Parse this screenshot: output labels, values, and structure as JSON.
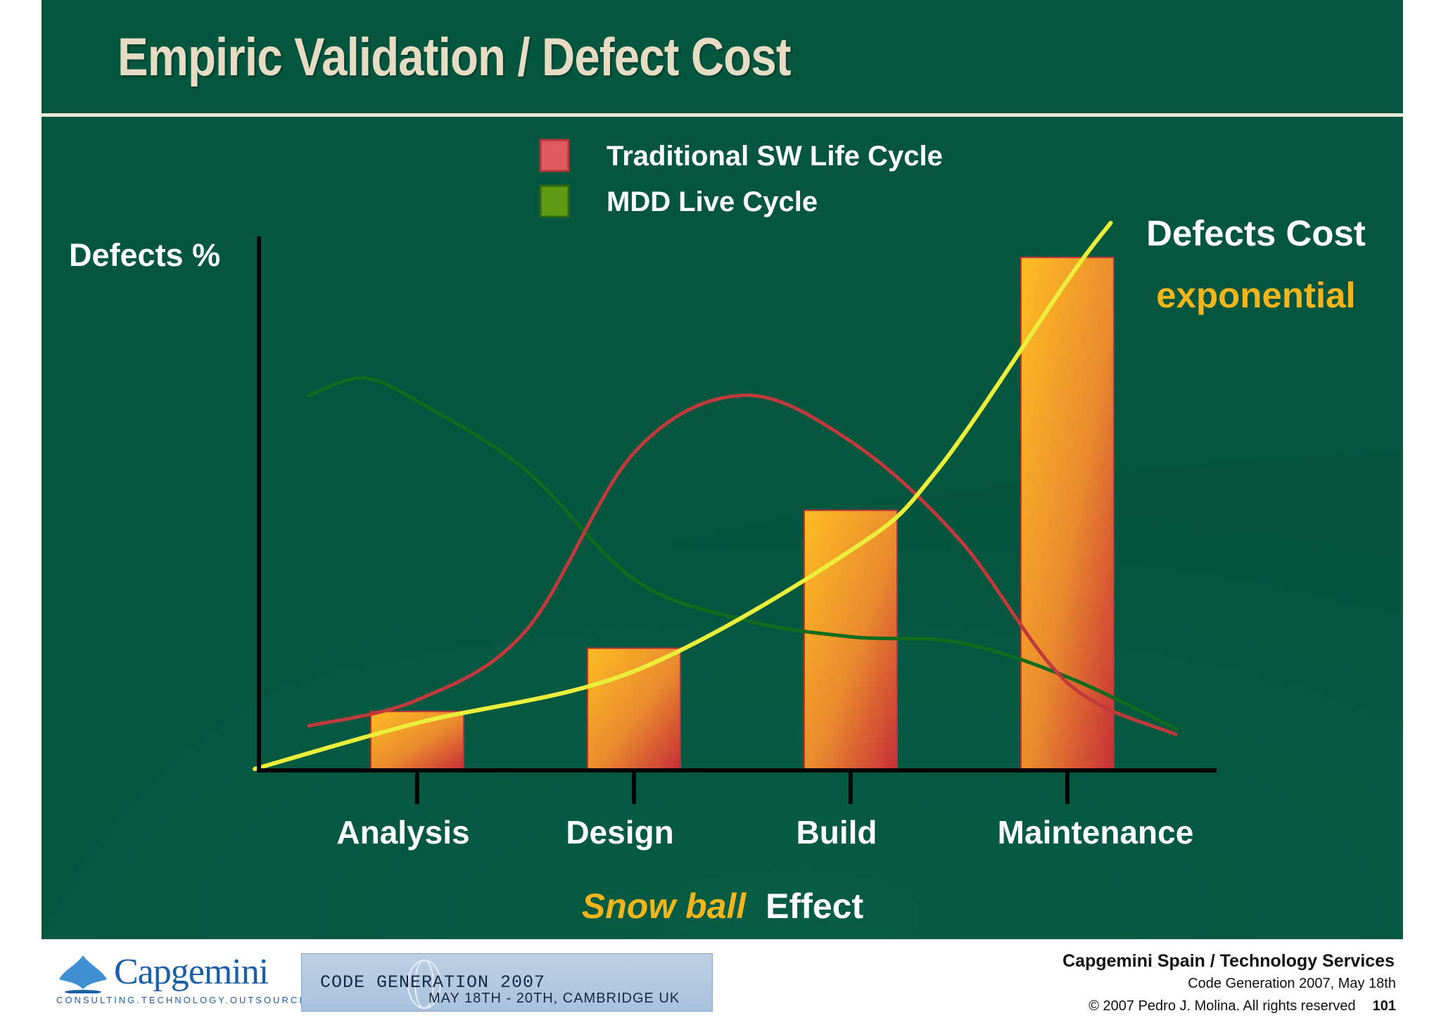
{
  "slide": {
    "title": "Empiric Validation / Defect Cost",
    "colors": {
      "background": "#04563f",
      "title": "#e6dcc4",
      "accent": "#f2b51c"
    }
  },
  "chart_data": {
    "type": "bar",
    "ylabel": "Defects %",
    "categories": [
      "Analysis",
      "Design",
      "Build",
      "Maintenance"
    ],
    "series": [
      {
        "name": "Defects Cost",
        "type": "bar",
        "values": [
          10,
          21,
          45,
          89
        ],
        "color": "#f2b51c"
      },
      {
        "name": "Traditional SW Life Cycle",
        "type": "line",
        "color": "#c0393b",
        "x": [
          -0.5,
          0.0,
          0.5,
          1.0,
          1.5,
          2.0,
          2.5,
          3.0,
          3.5
        ],
        "y": [
          7.5,
          12,
          24,
          55,
          65,
          57,
          40,
          15,
          6
        ]
      },
      {
        "name": "MDD Live Cycle",
        "type": "line",
        "color": "#0f6b1e",
        "x": [
          -0.5,
          -0.25,
          0.0,
          0.5,
          1.0,
          1.5,
          2.0,
          2.5,
          3.0,
          3.5
        ],
        "y": [
          65,
          68,
          64,
          52,
          33,
          26,
          23,
          22,
          16,
          7
        ]
      },
      {
        "name": "exponential",
        "type": "line",
        "color": "#ecef3a",
        "x": [
          -0.75,
          0.0,
          1.0,
          2.0,
          2.4,
          3.0,
          3.2
        ],
        "y": [
          0,
          8,
          17,
          38,
          52,
          85,
          95
        ]
      }
    ],
    "legend": [
      {
        "label": "Traditional SW Life Cycle",
        "color": "#dd5a5e"
      },
      {
        "label": "MDD Live Cycle",
        "color": "#5e9a14"
      }
    ],
    "annotations": {
      "cost_title": "Defects Cost",
      "cost_sub": "exponential"
    },
    "caption": {
      "highlight": "Snow ball",
      "rest": "Effect"
    },
    "ylim": [
      0,
      100
    ],
    "legend_placement": "top-center",
    "grid": false
  },
  "footer": {
    "logo_text": "Capgemini",
    "logo_tagline": "CONSULTING.TECHNOLOGY.OUTSOURCING",
    "banner_title": "CODE GENERATION 2007",
    "banner_subtitle": "MAY 18TH - 20TH, CAMBRIDGE UK",
    "company": "Capgemini Spain / Technology Services",
    "event": "Code Generation 2007, May 18th",
    "copyright": "© 2007 Pedro J. Molina. All rights reserved",
    "page_number": "101"
  }
}
